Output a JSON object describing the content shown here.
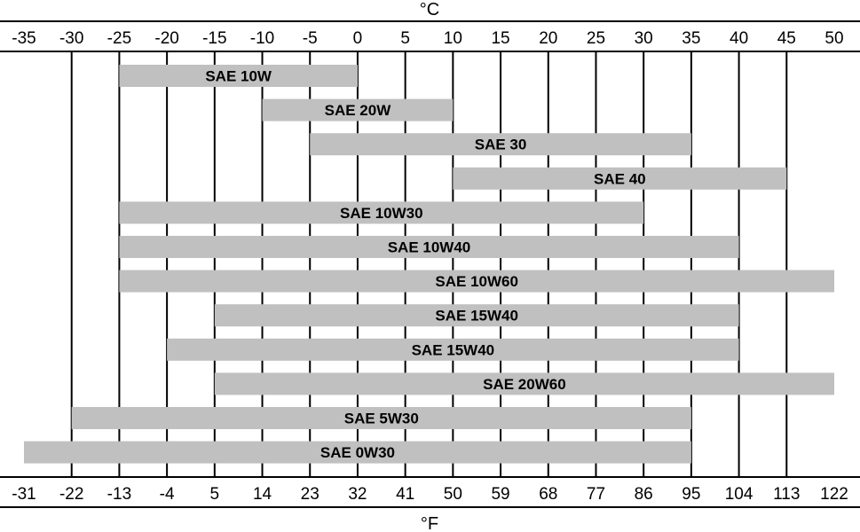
{
  "chart_data": {
    "type": "bar",
    "orientation": "horizontal-range",
    "top_axis_unit": "°C",
    "bottom_axis_unit": "°F",
    "celsius_ticks": [
      "-35",
      "-30",
      "-25",
      "-20",
      "-15",
      "-10",
      "-5",
      "0",
      "5",
      "10",
      "15",
      "20",
      "25",
      "30",
      "35",
      "40",
      "45",
      "50"
    ],
    "fahrenheit_ticks": [
      "-31",
      "-22",
      "-13",
      "-4",
      "5",
      "14",
      "23",
      "32",
      "41",
      "50",
      "59",
      "68",
      "77",
      "86",
      "95",
      "104",
      "113",
      "122"
    ],
    "xlim_celsius": [
      -35,
      50
    ],
    "grid": true,
    "bar_color": "#c0c0c0",
    "series": [
      {
        "name": "SAE 10W",
        "start": -25,
        "end": 0
      },
      {
        "name": "SAE 20W",
        "start": -10,
        "end": 10
      },
      {
        "name": "SAE 30",
        "start": -5,
        "end": 35
      },
      {
        "name": "SAE 40",
        "start": 10,
        "end": 45
      },
      {
        "name": "SAE 10W30",
        "start": -25,
        "end": 30
      },
      {
        "name": "SAE 10W40",
        "start": -25,
        "end": 40
      },
      {
        "name": "SAE 10W60",
        "start": -25,
        "end": 50
      },
      {
        "name": "SAE 15W40",
        "start": -15,
        "end": 40
      },
      {
        "name": "SAE 15W40",
        "start": -20,
        "end": 40
      },
      {
        "name": "SAE 20W60",
        "start": -15,
        "end": 50
      },
      {
        "name": "SAE 5W30",
        "start": -30,
        "end": 35
      },
      {
        "name": "SAE 0W30",
        "start": -35,
        "end": 35
      }
    ]
  }
}
